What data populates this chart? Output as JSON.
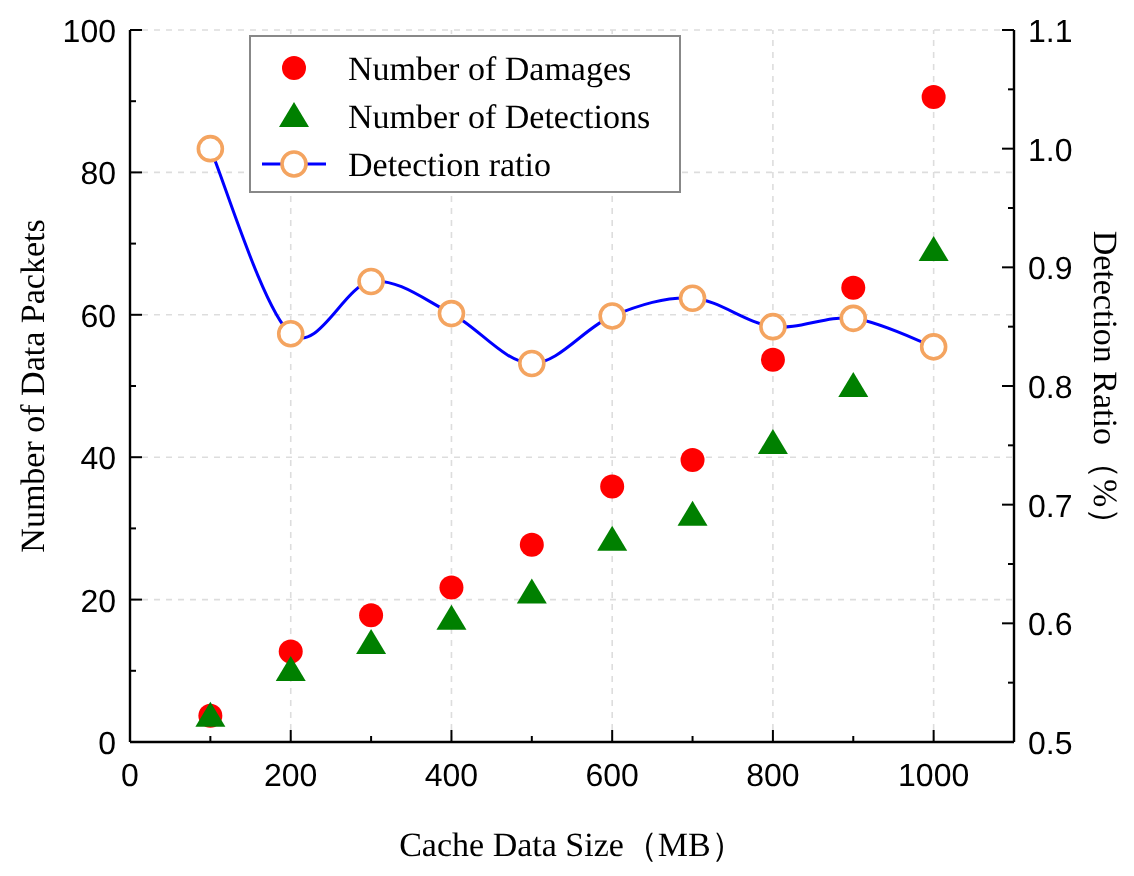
{
  "chart_data": {
    "type": "scatter",
    "xlabel": "Cache Data Size（MB）",
    "ylabel": "Number of Data Packets",
    "y2label": "Detection Ratio（%）",
    "x": [
      100,
      200,
      300,
      400,
      500,
      600,
      700,
      800,
      900,
      1000
    ],
    "xlim": [
      0,
      1100
    ],
    "xticks": [
      0,
      200,
      400,
      600,
      800,
      1000
    ],
    "ylim": [
      0,
      100
    ],
    "yticks": [
      0,
      20,
      40,
      60,
      80,
      100
    ],
    "y2lim": [
      0.5,
      1.1
    ],
    "y2ticks": [
      0.5,
      0.6,
      0.7,
      0.8,
      0.9,
      {
        "value": 1,
        "label": "1.0"
      },
      1.1
    ],
    "grid": true,
    "legend": "top",
    "series": [
      {
        "name": "Number of Damages",
        "marker": "circle",
        "color": "#ff0000",
        "values": [
          3.7,
          12.7,
          17.8,
          21.7,
          27.7,
          35.9,
          39.6,
          53.7,
          63.8,
          90.6
        ]
      },
      {
        "name": "Number of Detections",
        "marker": "triangle",
        "color": "#008000",
        "values": [
          3.7,
          10.1,
          13.9,
          17.3,
          21,
          28.4,
          31.9,
          42,
          50,
          69.1
        ]
      },
      {
        "name": "Detection ratio",
        "type": "line",
        "axis": "y2",
        "marker": "circle",
        "color": "#0000ff",
        "colors": [
          "#f4a460",
          "#f4a460",
          "#f4a460",
          "#f4a460",
          "#f4a460",
          "#f4a460",
          "#f4a460",
          "#f4a460",
          "#f4a460",
          "#f4a460"
        ],
        "values": [
          1.0,
          0.844,
          0.888,
          0.861,
          0.819,
          0.859,
          0.874,
          0.85,
          0.857,
          0.833
        ]
      }
    ]
  }
}
